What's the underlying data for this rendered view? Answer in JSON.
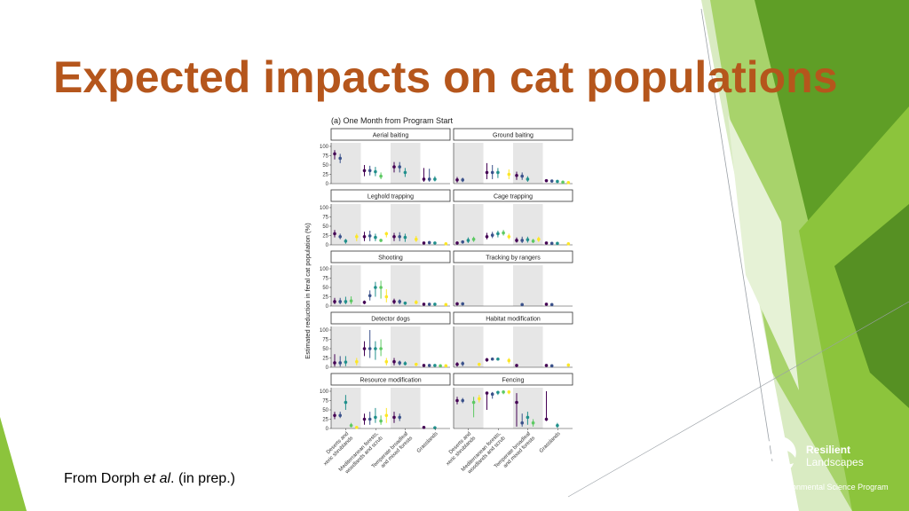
{
  "slide": {
    "title": "Expected impacts on cat populations",
    "caption_prefix": "From Dorph ",
    "caption_italic": "et al",
    "caption_suffix": ". (in prep.)",
    "theme_colors": {
      "title": "#b5561c",
      "green_dark": "#4a8c1c",
      "green_mid": "#7ab833",
      "green_light": "#b9d98a"
    }
  },
  "logo": {
    "line1": "Resilient",
    "line2": "Landscapes",
    "line3": "National Environmental Science Program"
  },
  "chart_data": {
    "type": "scatter",
    "title": "(a) One Month from Program Start",
    "ylabel": "Estimated reduction in feral cat population (%)",
    "ylim": [
      0,
      100
    ],
    "yticks": [
      0,
      25,
      50,
      75,
      100
    ],
    "categories": [
      "Deserts and xeric shrublands",
      "Mediterranean forests, woodlands and scrub",
      "Temperate broadleaf and mixed forests",
      "Grasslands"
    ],
    "series_colors": [
      "#440154",
      "#3b528b",
      "#21908c",
      "#5dc963",
      "#fde725"
    ],
    "panels": [
      {
        "name": "Aerial baiting",
        "points": [
          [
            0,
            0,
            80,
            65,
            90
          ],
          [
            0,
            1,
            68,
            55,
            80
          ],
          [
            1,
            0,
            35,
            20,
            50
          ],
          [
            1,
            1,
            35,
            22,
            48
          ],
          [
            1,
            2,
            32,
            20,
            45
          ],
          [
            1,
            3,
            20,
            12,
            30
          ],
          [
            2,
            0,
            45,
            30,
            58
          ],
          [
            2,
            1,
            45,
            30,
            58
          ],
          [
            2,
            2,
            30,
            18,
            42
          ],
          [
            3,
            0,
            12,
            5,
            42
          ],
          [
            3,
            1,
            12,
            5,
            40
          ],
          [
            3,
            2,
            12,
            6,
            20
          ]
        ]
      },
      {
        "name": "Ground baiting",
        "points": [
          [
            0,
            0,
            10,
            3,
            18
          ],
          [
            0,
            1,
            10,
            4,
            16
          ],
          [
            1,
            0,
            30,
            12,
            55
          ],
          [
            1,
            1,
            30,
            12,
            50
          ],
          [
            1,
            2,
            30,
            15,
            42
          ],
          [
            1,
            4,
            25,
            12,
            38
          ],
          [
            2,
            0,
            22,
            10,
            32
          ],
          [
            2,
            1,
            20,
            10,
            30
          ],
          [
            2,
            2,
            12,
            5,
            20
          ],
          [
            3,
            0,
            8,
            4,
            12
          ],
          [
            3,
            1,
            7,
            3,
            10
          ],
          [
            3,
            2,
            6,
            2,
            9
          ],
          [
            3,
            3,
            4,
            2,
            6
          ],
          [
            3,
            4,
            3,
            1,
            5
          ]
        ]
      },
      {
        "name": "Leghold trapping",
        "points": [
          [
            0,
            0,
            30,
            20,
            40
          ],
          [
            0,
            1,
            22,
            15,
            30
          ],
          [
            0,
            2,
            10,
            3,
            16
          ],
          [
            0,
            4,
            22,
            10,
            30
          ],
          [
            1,
            0,
            22,
            10,
            35
          ],
          [
            1,
            1,
            24,
            10,
            38
          ],
          [
            1,
            2,
            20,
            10,
            30
          ],
          [
            1,
            3,
            12,
            8,
            15
          ],
          [
            1,
            4,
            30,
            20,
            35
          ],
          [
            2,
            0,
            22,
            10,
            32
          ],
          [
            2,
            1,
            22,
            10,
            34
          ],
          [
            2,
            2,
            20,
            8,
            30
          ],
          [
            2,
            4,
            15,
            8,
            24
          ],
          [
            3,
            0,
            5,
            2,
            8
          ],
          [
            3,
            1,
            6,
            2,
            10
          ],
          [
            3,
            2,
            5,
            2,
            8
          ],
          [
            3,
            4,
            3,
            1,
            5
          ]
        ]
      },
      {
        "name": "Cage trapping",
        "points": [
          [
            0,
            0,
            5,
            2,
            9
          ],
          [
            0,
            1,
            8,
            3,
            12
          ],
          [
            0,
            2,
            12,
            5,
            20
          ],
          [
            0,
            3,
            15,
            8,
            22
          ],
          [
            1,
            0,
            22,
            15,
            32
          ],
          [
            1,
            1,
            26,
            18,
            35
          ],
          [
            1,
            2,
            30,
            20,
            38
          ],
          [
            1,
            3,
            32,
            25,
            40
          ],
          [
            1,
            4,
            22,
            15,
            30
          ],
          [
            2,
            0,
            12,
            6,
            20
          ],
          [
            2,
            1,
            12,
            5,
            22
          ],
          [
            2,
            2,
            14,
            6,
            22
          ],
          [
            2,
            3,
            10,
            5,
            16
          ],
          [
            2,
            4,
            15,
            8,
            22
          ],
          [
            3,
            0,
            5,
            2,
            8
          ],
          [
            3,
            1,
            4,
            2,
            6
          ],
          [
            3,
            2,
            4,
            2,
            6
          ],
          [
            3,
            4,
            3,
            1,
            5
          ]
        ]
      },
      {
        "name": "Shooting",
        "points": [
          [
            0,
            0,
            12,
            5,
            22
          ],
          [
            0,
            1,
            12,
            5,
            22
          ],
          [
            0,
            2,
            12,
            5,
            25
          ],
          [
            0,
            3,
            14,
            5,
            26
          ],
          [
            1,
            0,
            10,
            5,
            15
          ],
          [
            1,
            1,
            28,
            15,
            42
          ],
          [
            1,
            2,
            50,
            25,
            65
          ],
          [
            1,
            3,
            50,
            20,
            68
          ],
          [
            1,
            4,
            25,
            10,
            45
          ],
          [
            2,
            0,
            12,
            5,
            20
          ],
          [
            2,
            1,
            12,
            5,
            18
          ],
          [
            2,
            2,
            8,
            3,
            12
          ],
          [
            2,
            4,
            10,
            5,
            16
          ],
          [
            3,
            0,
            5,
            2,
            8
          ],
          [
            3,
            1,
            5,
            2,
            8
          ],
          [
            3,
            2,
            5,
            2,
            8
          ],
          [
            3,
            4,
            4,
            2,
            6
          ]
        ]
      },
      {
        "name": "Tracking by rangers",
        "points": [
          [
            0,
            0,
            6,
            2,
            10
          ],
          [
            0,
            1,
            6,
            2,
            9
          ],
          [
            2,
            1,
            4,
            2,
            6
          ],
          [
            3,
            0,
            5,
            2,
            7
          ],
          [
            3,
            1,
            4,
            2,
            6
          ]
        ]
      },
      {
        "name": "Detector dogs",
        "points": [
          [
            0,
            0,
            12,
            2,
            35
          ],
          [
            0,
            1,
            12,
            2,
            30
          ],
          [
            0,
            2,
            14,
            3,
            30
          ],
          [
            0,
            4,
            15,
            5,
            25
          ],
          [
            1,
            0,
            50,
            30,
            70
          ],
          [
            1,
            1,
            50,
            25,
            100
          ],
          [
            1,
            2,
            50,
            20,
            70
          ],
          [
            1,
            3,
            50,
            30,
            75
          ],
          [
            1,
            4,
            15,
            5,
            25
          ],
          [
            2,
            0,
            15,
            5,
            25
          ],
          [
            2,
            1,
            12,
            5,
            18
          ],
          [
            2,
            2,
            10,
            5,
            16
          ],
          [
            2,
            4,
            8,
            3,
            12
          ],
          [
            3,
            0,
            5,
            2,
            7
          ],
          [
            3,
            1,
            5,
            2,
            7
          ],
          [
            3,
            2,
            5,
            2,
            7
          ],
          [
            3,
            3,
            4,
            2,
            6
          ],
          [
            3,
            4,
            4,
            2,
            6
          ]
        ]
      },
      {
        "name": "Habitat modification",
        "points": [
          [
            0,
            0,
            8,
            2,
            14
          ],
          [
            0,
            1,
            10,
            3,
            16
          ],
          [
            0,
            4,
            8,
            3,
            12
          ],
          [
            1,
            0,
            20,
            15,
            25
          ],
          [
            1,
            1,
            22,
            18,
            26
          ],
          [
            1,
            2,
            22,
            18,
            26
          ],
          [
            1,
            4,
            18,
            10,
            25
          ],
          [
            2,
            0,
            5,
            2,
            8
          ],
          [
            3,
            0,
            5,
            2,
            7
          ],
          [
            3,
            1,
            4,
            2,
            6
          ],
          [
            3,
            4,
            6,
            2,
            10
          ]
        ]
      },
      {
        "name": "Resource modification",
        "points": [
          [
            0,
            0,
            35,
            25,
            45
          ],
          [
            0,
            1,
            35,
            28,
            45
          ],
          [
            0,
            2,
            70,
            50,
            90
          ],
          [
            0,
            3,
            8,
            3,
            15
          ],
          [
            0,
            4,
            3,
            1,
            5
          ],
          [
            1,
            0,
            25,
            10,
            40
          ],
          [
            1,
            1,
            25,
            10,
            45
          ],
          [
            1,
            2,
            30,
            15,
            55
          ],
          [
            1,
            3,
            20,
            10,
            35
          ],
          [
            1,
            4,
            35,
            15,
            55
          ],
          [
            2,
            0,
            30,
            15,
            45
          ],
          [
            2,
            1,
            30,
            20,
            40
          ],
          [
            3,
            0,
            3,
            1,
            5
          ],
          [
            3,
            2,
            2,
            1,
            3
          ]
        ]
      },
      {
        "name": "Fencing",
        "points": [
          [
            0,
            0,
            75,
            65,
            85
          ],
          [
            0,
            1,
            75,
            68,
            82
          ],
          [
            0,
            3,
            70,
            30,
            85
          ],
          [
            0,
            4,
            80,
            70,
            90
          ],
          [
            1,
            0,
            95,
            50,
            98
          ],
          [
            1,
            1,
            92,
            80,
            98
          ],
          [
            1,
            2,
            97,
            90,
            100
          ],
          [
            1,
            3,
            98,
            92,
            100
          ],
          [
            1,
            4,
            98,
            92,
            100
          ],
          [
            2,
            0,
            70,
            5,
            95
          ],
          [
            2,
            1,
            15,
            5,
            40
          ],
          [
            2,
            2,
            30,
            10,
            45
          ],
          [
            2,
            3,
            15,
            5,
            25
          ],
          [
            3,
            0,
            25,
            20,
            100
          ],
          [
            3,
            2,
            8,
            2,
            15
          ]
        ]
      }
    ]
  }
}
